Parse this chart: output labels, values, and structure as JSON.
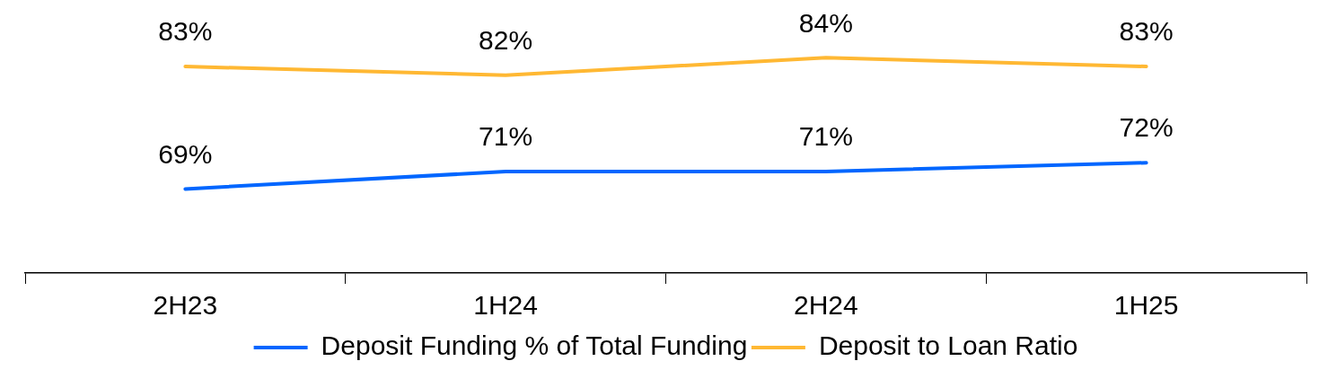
{
  "chart_data": {
    "type": "line",
    "categories": [
      "2H23",
      "1H24",
      "2H24",
      "1H25"
    ],
    "series": [
      {
        "name": "Deposit Funding % of Total Funding",
        "color": "#0066ff",
        "values": [
          69,
          71,
          71,
          72
        ],
        "value_labels": [
          "69%",
          "71%",
          "71%",
          "72%"
        ]
      },
      {
        "name": "Deposit to Loan Ratio",
        "color": "#ffb833",
        "values": [
          83,
          82,
          84,
          83
        ],
        "value_labels": [
          "83%",
          "82%",
          "84%",
          "83%"
        ]
      }
    ],
    "legend": "bottom",
    "marker": "none",
    "line_style": "solid",
    "grid": false
  }
}
